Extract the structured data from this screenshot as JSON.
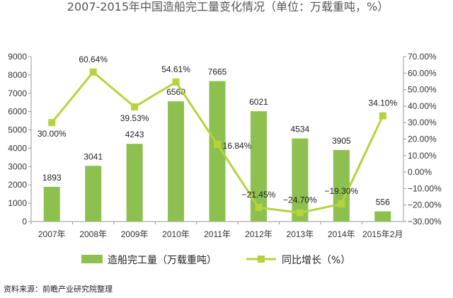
{
  "title": "2007-2015年中国造船完工量变化情况（单位：万载重吨，%）",
  "source": "资料来源：前瞻产业研究院整理",
  "colors": {
    "bar": "#8dc04f",
    "line": "#b5d33d",
    "axis": "#999999",
    "text": "#333333"
  },
  "chart_data": {
    "type": "bar",
    "categories": [
      "2007年",
      "2008年",
      "2009年",
      "2010年",
      "2011年",
      "2012年",
      "2013年",
      "2014年",
      "2015年2月"
    ],
    "series": [
      {
        "name": "造船完工量（万载重吨）",
        "type": "bar",
        "axis": "left",
        "values": [
          1893,
          3041,
          4243,
          6560,
          7665,
          6021,
          4534,
          3905,
          556
        ],
        "labels": [
          "1893",
          "3041",
          "4243",
          "6560",
          "7665",
          "6021",
          "4534",
          "3905",
          "556"
        ]
      },
      {
        "name": "同比增长（%）",
        "type": "line",
        "axis": "right",
        "values": [
          30.0,
          60.64,
          39.53,
          54.61,
          16.84,
          -21.45,
          -24.7,
          -19.3,
          34.1
        ],
        "labels": [
          "30.00%",
          "60.64%",
          "39.53%",
          "54.61%",
          "16.84%",
          "−21.45%",
          "−24.70%",
          "−19.30%",
          "34.10%"
        ]
      }
    ],
    "y_left": {
      "lim": [
        0,
        9000
      ],
      "ticks": [
        "0",
        "1000",
        "2000",
        "3000",
        "4000",
        "5000",
        "6000",
        "7000",
        "8000",
        "9000"
      ]
    },
    "y_right": {
      "lim": [
        -30,
        70
      ],
      "ticks": [
        "−30.00%",
        "−20.00%",
        "−10.00%",
        "0.00%",
        "10.00%",
        "20.00%",
        "30.00%",
        "40.00%",
        "50.00%",
        "60.00%",
        "70.00%"
      ]
    },
    "grid": false,
    "legend_position": "bottom"
  }
}
